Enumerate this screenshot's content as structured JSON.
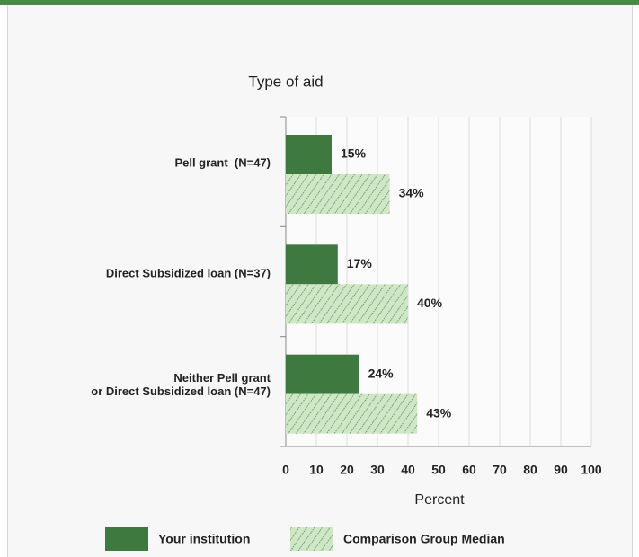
{
  "chart_data": {
    "type": "bar",
    "orientation": "horizontal",
    "title": "Type of aid",
    "x_label": "Percent",
    "categories": [
      "Pell grant  (N=47)",
      "Direct Subsidized loan (N=37)",
      "Neither Pell grant\nor Direct Subsidized loan (N=47)"
    ],
    "series": [
      {
        "name": "Your institution",
        "color": "#3e7a3f",
        "values": [
          15,
          17,
          24
        ],
        "value_labels": [
          "15%",
          "17%",
          "24%"
        ]
      },
      {
        "name": "Comparison Group Median",
        "color": "#cfe7c6",
        "hatch": true,
        "values": [
          34,
          40,
          43
        ],
        "value_labels": [
          "34%",
          "40%",
          "43%"
        ]
      }
    ],
    "xlim": [
      0,
      100
    ],
    "xticks": [
      0,
      10,
      20,
      30,
      40,
      50,
      60,
      70,
      80,
      90,
      100
    ],
    "grid": true,
    "legend": "bottom"
  }
}
